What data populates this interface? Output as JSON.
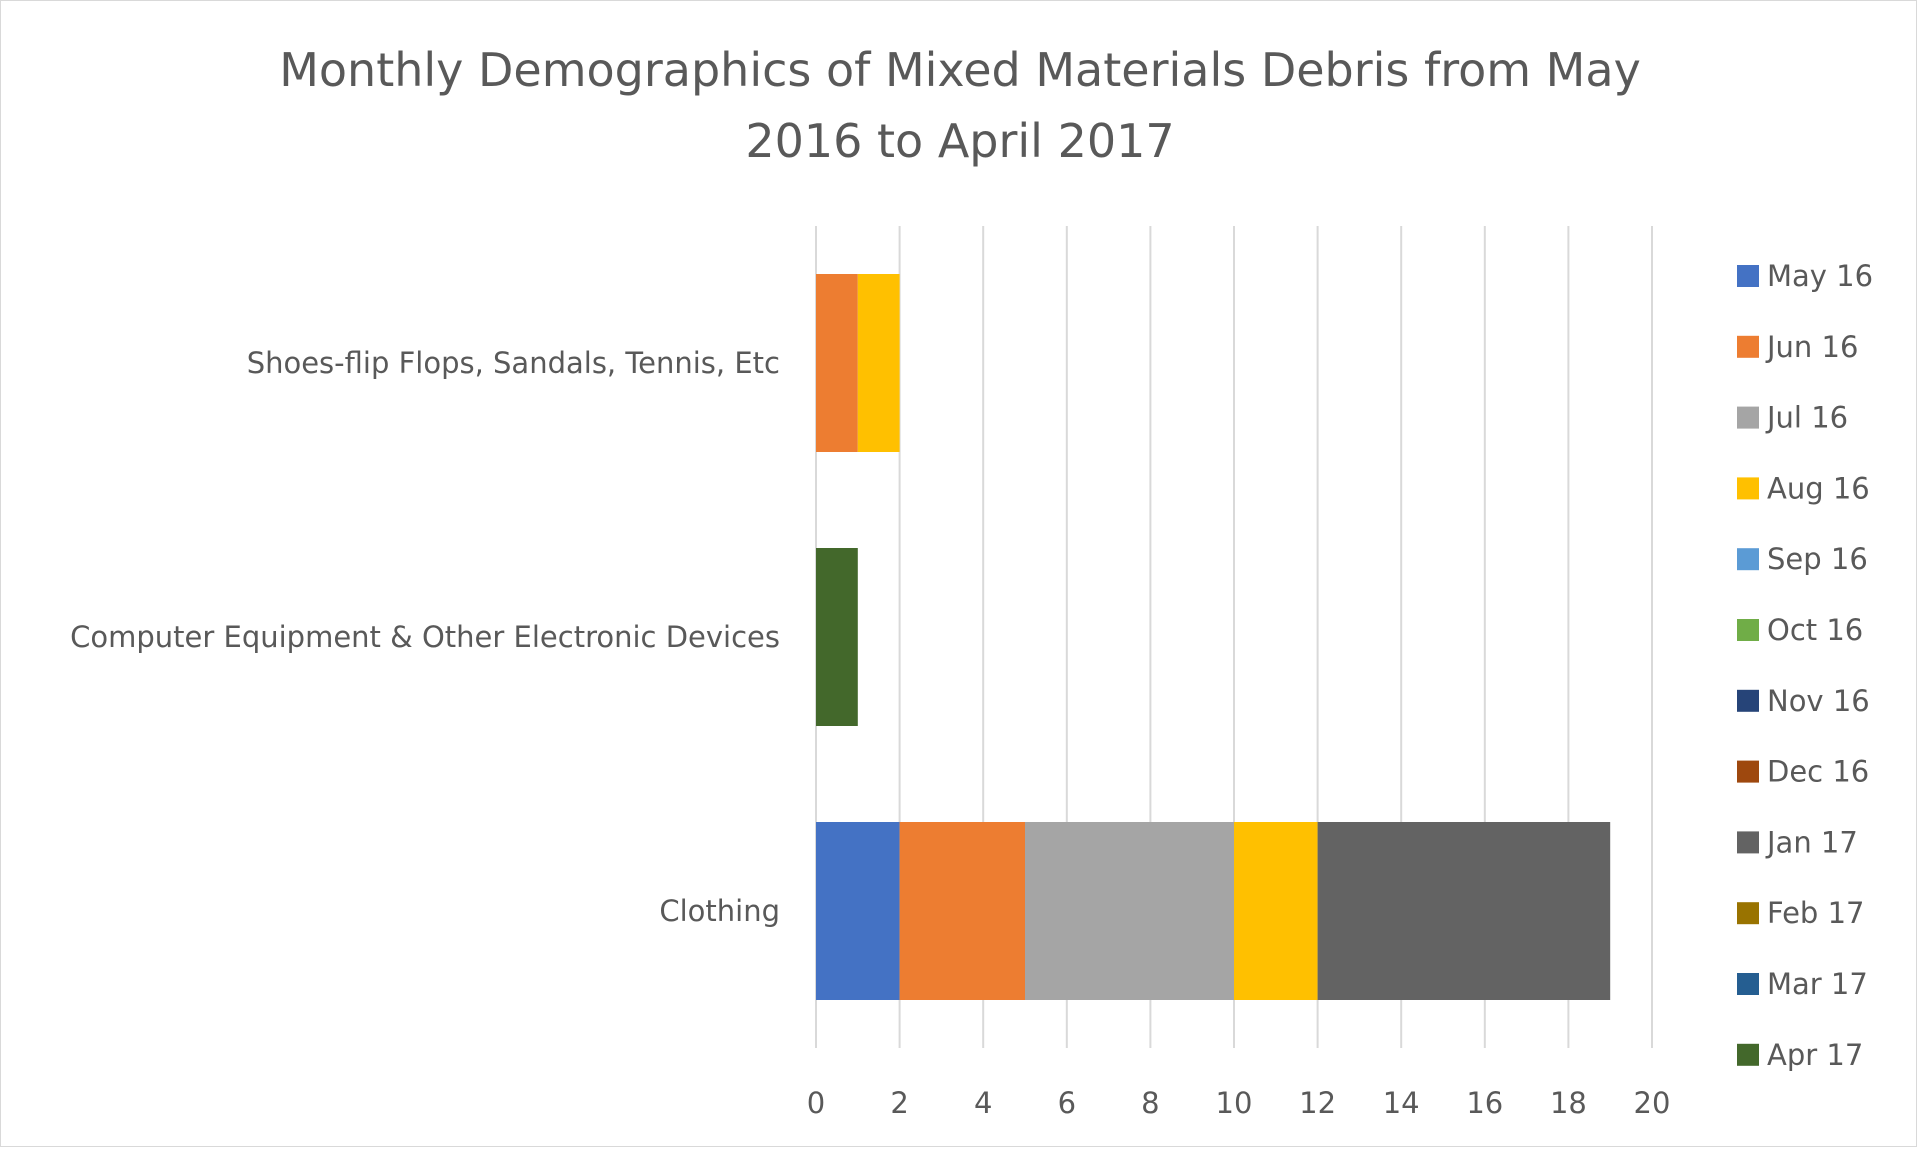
{
  "chart_data": {
    "type": "bar",
    "orientation": "horizontal",
    "stacked": true,
    "title_lines": [
      "Monthly Demographics of Mixed Materials Debris from May",
      "2016 to April 2017"
    ],
    "categories": [
      "Clothing",
      "Computer Equipment & Other Electronic Devices",
      "Shoes-flip Flops, Sandals, Tennis, Etc"
    ],
    "series": [
      {
        "name": "May 16",
        "color": "#4472C4",
        "values": [
          2,
          0,
          0
        ]
      },
      {
        "name": "Jun 16",
        "color": "#ED7D31",
        "values": [
          3,
          0,
          1
        ]
      },
      {
        "name": "Jul 16",
        "color": "#A5A5A5",
        "values": [
          5,
          0,
          0
        ]
      },
      {
        "name": "Aug 16",
        "color": "#FFC000",
        "values": [
          2,
          0,
          1
        ]
      },
      {
        "name": "Sep 16",
        "color": "#5B9BD5",
        "values": [
          0,
          0,
          0
        ]
      },
      {
        "name": "Oct 16",
        "color": "#70AD47",
        "values": [
          0,
          0,
          0
        ]
      },
      {
        "name": "Nov 16",
        "color": "#264478",
        "values": [
          0,
          0,
          0
        ]
      },
      {
        "name": "Dec 16",
        "color": "#9E480E",
        "values": [
          0,
          0,
          0
        ]
      },
      {
        "name": "Jan 17",
        "color": "#636363",
        "values": [
          7,
          0,
          0
        ]
      },
      {
        "name": "Feb 17",
        "color": "#997300",
        "values": [
          0,
          0,
          0
        ]
      },
      {
        "name": "Mar 17",
        "color": "#255E91",
        "values": [
          0,
          0,
          0
        ]
      },
      {
        "name": "Apr 17",
        "color": "#43682B",
        "values": [
          0,
          1,
          0
        ]
      }
    ],
    "xlim": [
      0,
      20
    ],
    "x_ticks": [
      "0",
      "2",
      "4",
      "6",
      "8",
      "10",
      "12",
      "14",
      "16",
      "18",
      "20"
    ],
    "x_tick_values": [
      0,
      2,
      4,
      6,
      8,
      10,
      12,
      14,
      16,
      18,
      20
    ],
    "grid": true,
    "gridline_color": "#d9d9d9",
    "legend_position": "right"
  }
}
